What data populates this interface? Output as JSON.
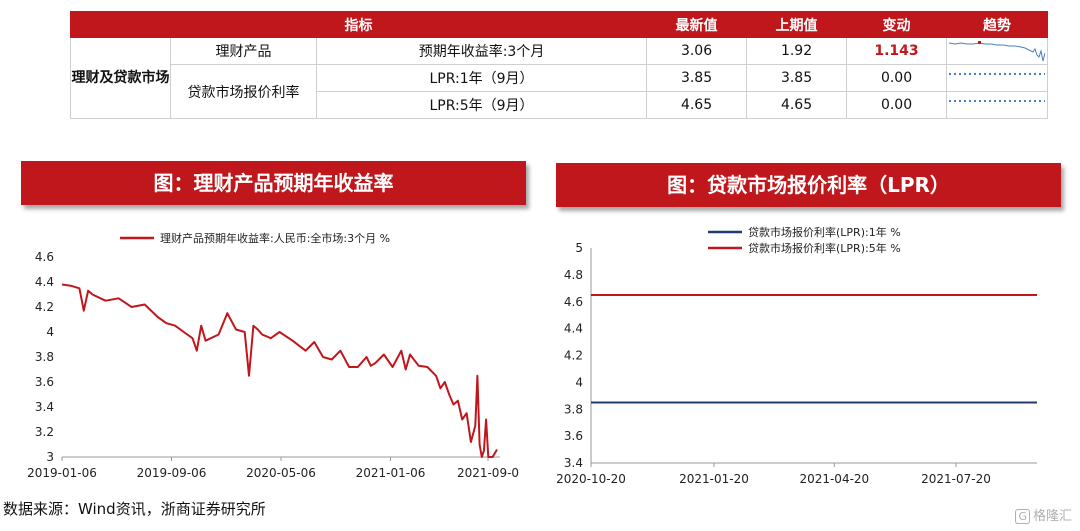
{
  "table": {
    "headers": {
      "indicator": "指标",
      "latest": "最新值",
      "previous": "上期值",
      "change": "变动",
      "trend": "趋势"
    },
    "group_label": "理财及贷款市场",
    "rows": [
      {
        "category": "理财产品",
        "name": "预期年收益率:3个月",
        "latest": "3.06",
        "previous": "1.92",
        "change": "1.143",
        "trend_type": "line"
      },
      {
        "category": "贷款市场报价利率",
        "name": "LPR:1年（9月）",
        "latest": "3.85",
        "previous": "3.85",
        "change": "0.00",
        "trend_type": "dotted"
      },
      {
        "name": "LPR:5年（9月）",
        "latest": "4.65",
        "previous": "4.65",
        "change": "0.00",
        "trend_type": "dotted"
      }
    ],
    "colors": {
      "header_bg": "#c0171c",
      "positive": "#c0171c",
      "trend_line": "#4a7ebb",
      "trend_dot": "#4a7ebb",
      "trend_marker": "#c0171c"
    }
  },
  "titles": {
    "left": "图：理财产品预期年收益率",
    "right": "图：贷款市场报价利率（LPR）"
  },
  "source": "数据来源：Wind资讯，浙商证券研究所",
  "watermark": {
    "badge": "G",
    "text": "格隆汇"
  },
  "chart_data": [
    {
      "type": "line",
      "title": "图：理财产品预期年收益率",
      "x_ticks": [
        "2019-01-06",
        "2019-09-06",
        "2020-05-06",
        "2021-01-06",
        "2021-09-0"
      ],
      "y_ticks": [
        "4.6",
        "4.4",
        "4.2",
        "4",
        "3.8",
        "3.6",
        "3.4",
        "3.2",
        "3"
      ],
      "ylim": [
        3,
        4.6
      ],
      "grid": false,
      "legend_position": "top-center",
      "series": [
        {
          "name": "理财产品预期年收益率:人民币:全市场:3个月 %",
          "color": "#c0171c",
          "x": [
            0,
            0.02,
            0.04,
            0.05,
            0.06,
            0.07,
            0.1,
            0.13,
            0.16,
            0.19,
            0.22,
            0.24,
            0.26,
            0.28,
            0.3,
            0.31,
            0.32,
            0.33,
            0.36,
            0.38,
            0.4,
            0.42,
            0.43,
            0.44,
            0.45,
            0.46,
            0.48,
            0.5,
            0.53,
            0.56,
            0.58,
            0.6,
            0.62,
            0.64,
            0.66,
            0.68,
            0.7,
            0.71,
            0.72,
            0.74,
            0.76,
            0.78,
            0.79,
            0.8,
            0.82,
            0.84,
            0.86,
            0.87,
            0.88,
            0.89,
            0.9,
            0.91,
            0.92,
            0.93,
            0.94,
            0.95,
            0.955,
            0.96,
            0.965,
            0.97,
            0.975,
            0.98,
            0.99,
            1.0
          ],
          "values": [
            4.38,
            4.37,
            4.35,
            4.17,
            4.33,
            4.3,
            4.25,
            4.27,
            4.2,
            4.22,
            4.12,
            4.07,
            4.05,
            4.0,
            3.95,
            3.85,
            4.05,
            3.93,
            3.98,
            4.15,
            4.02,
            4.0,
            3.65,
            4.05,
            4.02,
            3.98,
            3.95,
            4.0,
            3.93,
            3.85,
            3.92,
            3.8,
            3.78,
            3.85,
            3.72,
            3.72,
            3.8,
            3.73,
            3.75,
            3.82,
            3.72,
            3.85,
            3.7,
            3.82,
            3.73,
            3.72,
            3.65,
            3.55,
            3.6,
            3.5,
            3.42,
            3.45,
            3.3,
            3.35,
            3.12,
            3.25,
            3.65,
            3.1,
            3.0,
            3.05,
            3.3,
            3.0,
            3.0,
            3.06
          ]
        }
      ]
    },
    {
      "type": "line",
      "title": "图：贷款市场报价利率（LPR）",
      "x_ticks": [
        "2020-10-20",
        "2021-01-20",
        "2021-04-20",
        "2021-07-20"
      ],
      "y_ticks": [
        "5",
        "4.8",
        "4.6",
        "4.4",
        "4.2",
        "4",
        "3.8",
        "3.6",
        "3.4"
      ],
      "ylim": [
        3.4,
        5
      ],
      "grid": false,
      "legend_position": "top-center",
      "series": [
        {
          "name": "贷款市场报价利率(LPR):1年 %",
          "color": "#1f3c6e",
          "x": [
            "2020-10-20",
            "2021-09-20"
          ],
          "values": [
            3.85,
            3.85
          ]
        },
        {
          "name": "贷款市场报价利率(LPR):5年 %",
          "color": "#c0171c",
          "x": [
            "2020-10-20",
            "2021-09-20"
          ],
          "values": [
            4.65,
            4.65
          ]
        }
      ]
    }
  ]
}
